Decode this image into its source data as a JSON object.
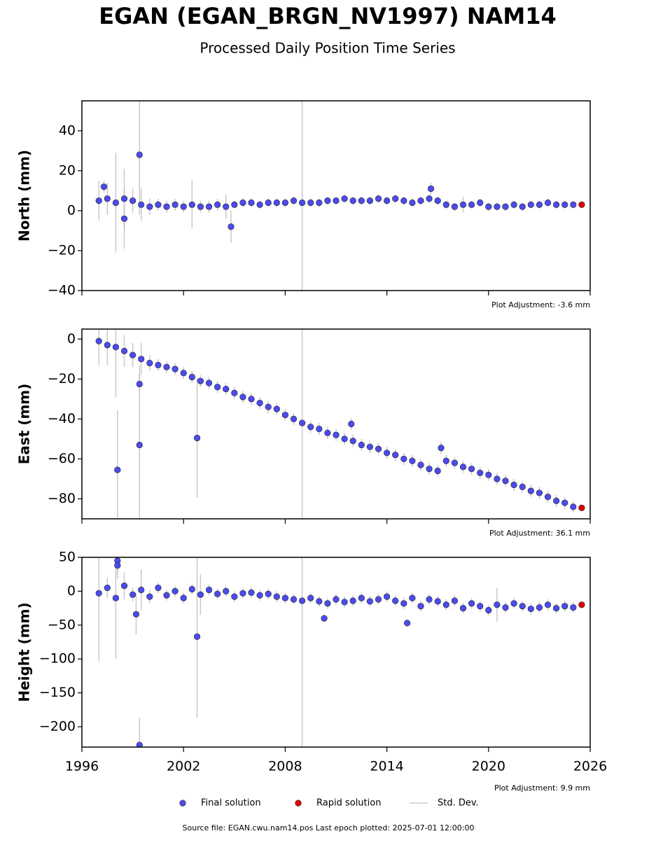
{
  "title": "EGAN (EGAN_BRGN_NV1997) NAM14",
  "subtitle": "Processed Daily Position Time Series",
  "footer": "Source file: EGAN.cwu.nam14.pos  Last epoch plotted: 2025-07-01 12:00:00",
  "legend": [
    {
      "name": "Final solution",
      "color": "#4b4bf0",
      "kind": "marker"
    },
    {
      "name": "Rapid solution",
      "color": "#e00000",
      "kind": "marker"
    },
    {
      "name": "Std. Dev.",
      "color": "#cccccc",
      "kind": "line"
    }
  ],
  "chart_data": [
    {
      "type": "scatter",
      "ylabel": "North (mm)",
      "annotation": "Plot Adjustment: -3.6 mm",
      "xlim": [
        1996,
        2026
      ],
      "xticks": [
        1996,
        2002,
        2008,
        2014,
        2020,
        2026
      ],
      "show_xtick_labels": false,
      "ylim": [
        -40,
        55
      ],
      "yticks": [
        {
          "value": -40,
          "label": "−40"
        },
        {
          "value": -20,
          "label": "−20"
        },
        0,
        20,
        40
      ],
      "series": [
        {
          "color": "#4b4bf0",
          "error_color": "#bbbbbb",
          "x": [
            1997.0,
            1997.5,
            1998.0,
            1998.5,
            1999.0,
            1999.5,
            2000.0,
            2000.5,
            2001.0,
            2001.5,
            2002.0,
            2002.5,
            2003.0,
            2003.5,
            2004.0,
            2004.5,
            2005.0,
            2005.5,
            2006.0,
            2006.5,
            2007.0,
            2007.5,
            2008.0,
            2008.5,
            2009.0,
            2009.5,
            2010.0,
            2010.5,
            2011.0,
            2011.5,
            2012.0,
            2012.5,
            2013.0,
            2013.5,
            2014.0,
            2014.5,
            2015.0,
            2015.5,
            2016.0,
            2016.5,
            2017.0,
            2017.5,
            2018.0,
            2018.5,
            2019.0,
            2019.5,
            2020.0,
            2020.5,
            2021.0,
            2021.5,
            2022.0,
            2022.5,
            2023.0,
            2023.5,
            2024.0,
            2024.5,
            2025.0,
            1999.4,
            1997.3,
            2004.8,
            1998.5,
            2016.6
          ],
          "values": [
            5,
            6,
            4,
            6,
            5,
            3,
            2,
            3,
            2,
            3,
            2,
            3,
            2,
            2,
            3,
            2,
            3,
            4,
            4,
            3,
            4,
            4,
            4,
            5,
            4,
            4,
            4,
            5,
            5,
            6,
            5,
            5,
            5,
            6,
            5,
            6,
            5,
            4,
            5,
            6,
            5,
            3,
            2,
            3,
            3,
            4,
            2,
            2,
            2,
            3,
            2,
            3,
            3,
            4,
            3,
            3,
            3,
            28,
            12,
            -8,
            -4,
            11
          ],
          "errors": [
            10,
            8,
            25,
            15,
            6,
            8,
            4,
            3,
            3,
            3,
            3,
            12,
            3,
            3,
            3,
            6,
            2,
            2,
            2,
            2,
            2,
            2,
            2,
            2,
            60,
            2,
            2,
            2,
            2,
            2,
            2,
            2,
            2,
            2,
            2,
            2,
            2,
            2,
            2,
            2,
            2,
            2,
            2,
            4,
            2,
            2,
            2,
            2,
            2,
            2,
            2,
            2,
            2,
            2,
            2,
            2,
            2,
            30,
            3,
            8,
            15,
            3
          ]
        },
        {
          "color": "#e00000",
          "x": [
            2025.5
          ],
          "values": [
            3
          ]
        }
      ]
    },
    {
      "type": "scatter",
      "ylabel": "East (mm)",
      "annotation": "Plot Adjustment: 36.1 mm",
      "xlim": [
        1996,
        2026
      ],
      "xticks": [
        1996,
        2002,
        2008,
        2014,
        2020,
        2026
      ],
      "show_xtick_labels": false,
      "ylim": [
        -90,
        5
      ],
      "yticks": [
        {
          "value": -80,
          "label": "−80"
        },
        {
          "value": -60,
          "label": "−60"
        },
        {
          "value": -40,
          "label": "−40"
        },
        {
          "value": -20,
          "label": "−20"
        },
        0
      ],
      "series": [
        {
          "color": "#4b4bf0",
          "error_color": "#bbbbbb",
          "x": [
            1997.0,
            1997.5,
            1998.0,
            1998.5,
            1999.0,
            1999.5,
            2000.0,
            2000.5,
            2001.0,
            2001.5,
            2002.0,
            2002.5,
            2003.0,
            2003.5,
            2004.0,
            2004.5,
            2005.0,
            2005.5,
            2006.0,
            2006.5,
            2007.0,
            2007.5,
            2008.0,
            2008.5,
            2009.0,
            2009.5,
            2010.0,
            2010.5,
            2011.0,
            2011.5,
            2012.0,
            2012.5,
            2013.0,
            2013.5,
            2014.0,
            2014.5,
            2015.0,
            2015.5,
            2016.0,
            2016.5,
            2017.0,
            2017.5,
            2018.0,
            2018.5,
            2019.0,
            2019.5,
            2020.0,
            2020.5,
            2021.0,
            2021.5,
            2022.0,
            2022.5,
            2023.0,
            2023.5,
            2024.0,
            2024.5,
            2025.0,
            1998.1,
            1999.4,
            2002.8,
            1999.4,
            2011.9,
            2017.2
          ],
          "values": [
            -1,
            -3,
            -4,
            -6,
            -8,
            -10,
            -12,
            -13,
            -14,
            -15,
            -17,
            -19,
            -21,
            -22,
            -24,
            -25,
            -27,
            -29,
            -30,
            -32,
            -34,
            -35,
            -38,
            -40,
            -42,
            -44,
            -45,
            -47,
            -48,
            -50,
            -51,
            -53,
            -54,
            -55,
            -57,
            -58,
            -60,
            -61,
            -63,
            -65,
            -66,
            -61,
            -62,
            -64,
            -65,
            -67,
            -68,
            -70,
            -71,
            -73,
            -74,
            -76,
            -77,
            -79,
            -81,
            -82,
            -84,
            -65.5,
            -53,
            -49.5,
            -22.5,
            -42.5,
            -54.5
          ],
          "errors": [
            12,
            10,
            25,
            8,
            6,
            8,
            4,
            3,
            3,
            3,
            3,
            3,
            3,
            3,
            3,
            3,
            3,
            3,
            3,
            3,
            3,
            3,
            3,
            3,
            95,
            3,
            3,
            3,
            3,
            3,
            3,
            3,
            3,
            3,
            3,
            3,
            3,
            3,
            3,
            3,
            3,
            3,
            3,
            3,
            3,
            3,
            3,
            3,
            3,
            3,
            3,
            3,
            3,
            3,
            3,
            3,
            3,
            30,
            40,
            30,
            5,
            3,
            3
          ]
        },
        {
          "color": "#e00000",
          "x": [
            2025.5
          ],
          "values": [
            -84.5
          ]
        }
      ]
    },
    {
      "type": "scatter",
      "ylabel": "Height (mm)",
      "annotation": "Plot Adjustment: 9.9 mm",
      "xlim": [
        1996,
        2026
      ],
      "xticks": [
        1996,
        2002,
        2008,
        2014,
        2020,
        2026
      ],
      "show_xtick_labels": true,
      "ylim": [
        -230,
        50
      ],
      "yticks": [
        {
          "value": -200,
          "label": "−200"
        },
        {
          "value": -150,
          "label": "−150"
        },
        {
          "value": -100,
          "label": "−100"
        },
        {
          "value": -50,
          "label": "−50"
        },
        0,
        50
      ],
      "series": [
        {
          "color": "#4b4bf0",
          "error_color": "#bbbbbb",
          "x": [
            1997.0,
            1997.5,
            1998.0,
            1998.5,
            1999.0,
            1999.5,
            2000.0,
            2000.5,
            2001.0,
            2001.5,
            2002.0,
            2002.5,
            2003.0,
            2003.5,
            2004.0,
            2004.5,
            2005.0,
            2005.5,
            2006.0,
            2006.5,
            2007.0,
            2007.5,
            2008.0,
            2008.5,
            2009.0,
            2009.5,
            2010.0,
            2010.5,
            2011.0,
            2011.5,
            2012.0,
            2012.5,
            2013.0,
            2013.5,
            2014.0,
            2014.5,
            2015.0,
            2015.5,
            2016.0,
            2016.5,
            2017.0,
            2017.5,
            2018.0,
            2018.5,
            2019.0,
            2019.5,
            2020.0,
            2020.5,
            2021.0,
            2021.5,
            2022.0,
            2022.5,
            2023.0,
            2023.5,
            2024.0,
            2024.5,
            2025.0,
            1999.4,
            2002.8,
            1998.1,
            1998.1,
            2015.2,
            1999.2,
            2010.3
          ],
          "values": [
            -3,
            5,
            -10,
            8,
            -5,
            2,
            -8,
            5,
            -6,
            0,
            -10,
            3,
            -5,
            2,
            -4,
            0,
            -8,
            -3,
            -2,
            -6,
            -4,
            -8,
            -10,
            -12,
            -14,
            -10,
            -15,
            -18,
            -12,
            -16,
            -14,
            -10,
            -15,
            -12,
            -8,
            -14,
            -18,
            -10,
            -22,
            -12,
            -15,
            -20,
            -14,
            -25,
            -18,
            -22,
            -28,
            -20,
            -24,
            -18,
            -22,
            -26,
            -24,
            -20,
            -25,
            -22,
            -24,
            -227,
            -67,
            45,
            38,
            -47,
            -34,
            -40
          ],
          "errors": [
            100,
            15,
            90,
            20,
            10,
            30,
            10,
            8,
            8,
            8,
            8,
            8,
            30,
            8,
            8,
            8,
            8,
            8,
            8,
            8,
            8,
            8,
            8,
            8,
            250,
            8,
            8,
            8,
            8,
            8,
            8,
            8,
            8,
            8,
            8,
            8,
            8,
            8,
            8,
            8,
            8,
            8,
            8,
            8,
            8,
            8,
            8,
            25,
            8,
            8,
            8,
            8,
            8,
            8,
            8,
            8,
            8,
            40,
            120,
            20,
            20,
            5,
            30,
            5
          ]
        },
        {
          "color": "#e00000",
          "x": [
            2025.5
          ],
          "values": [
            -20
          ]
        }
      ]
    }
  ]
}
